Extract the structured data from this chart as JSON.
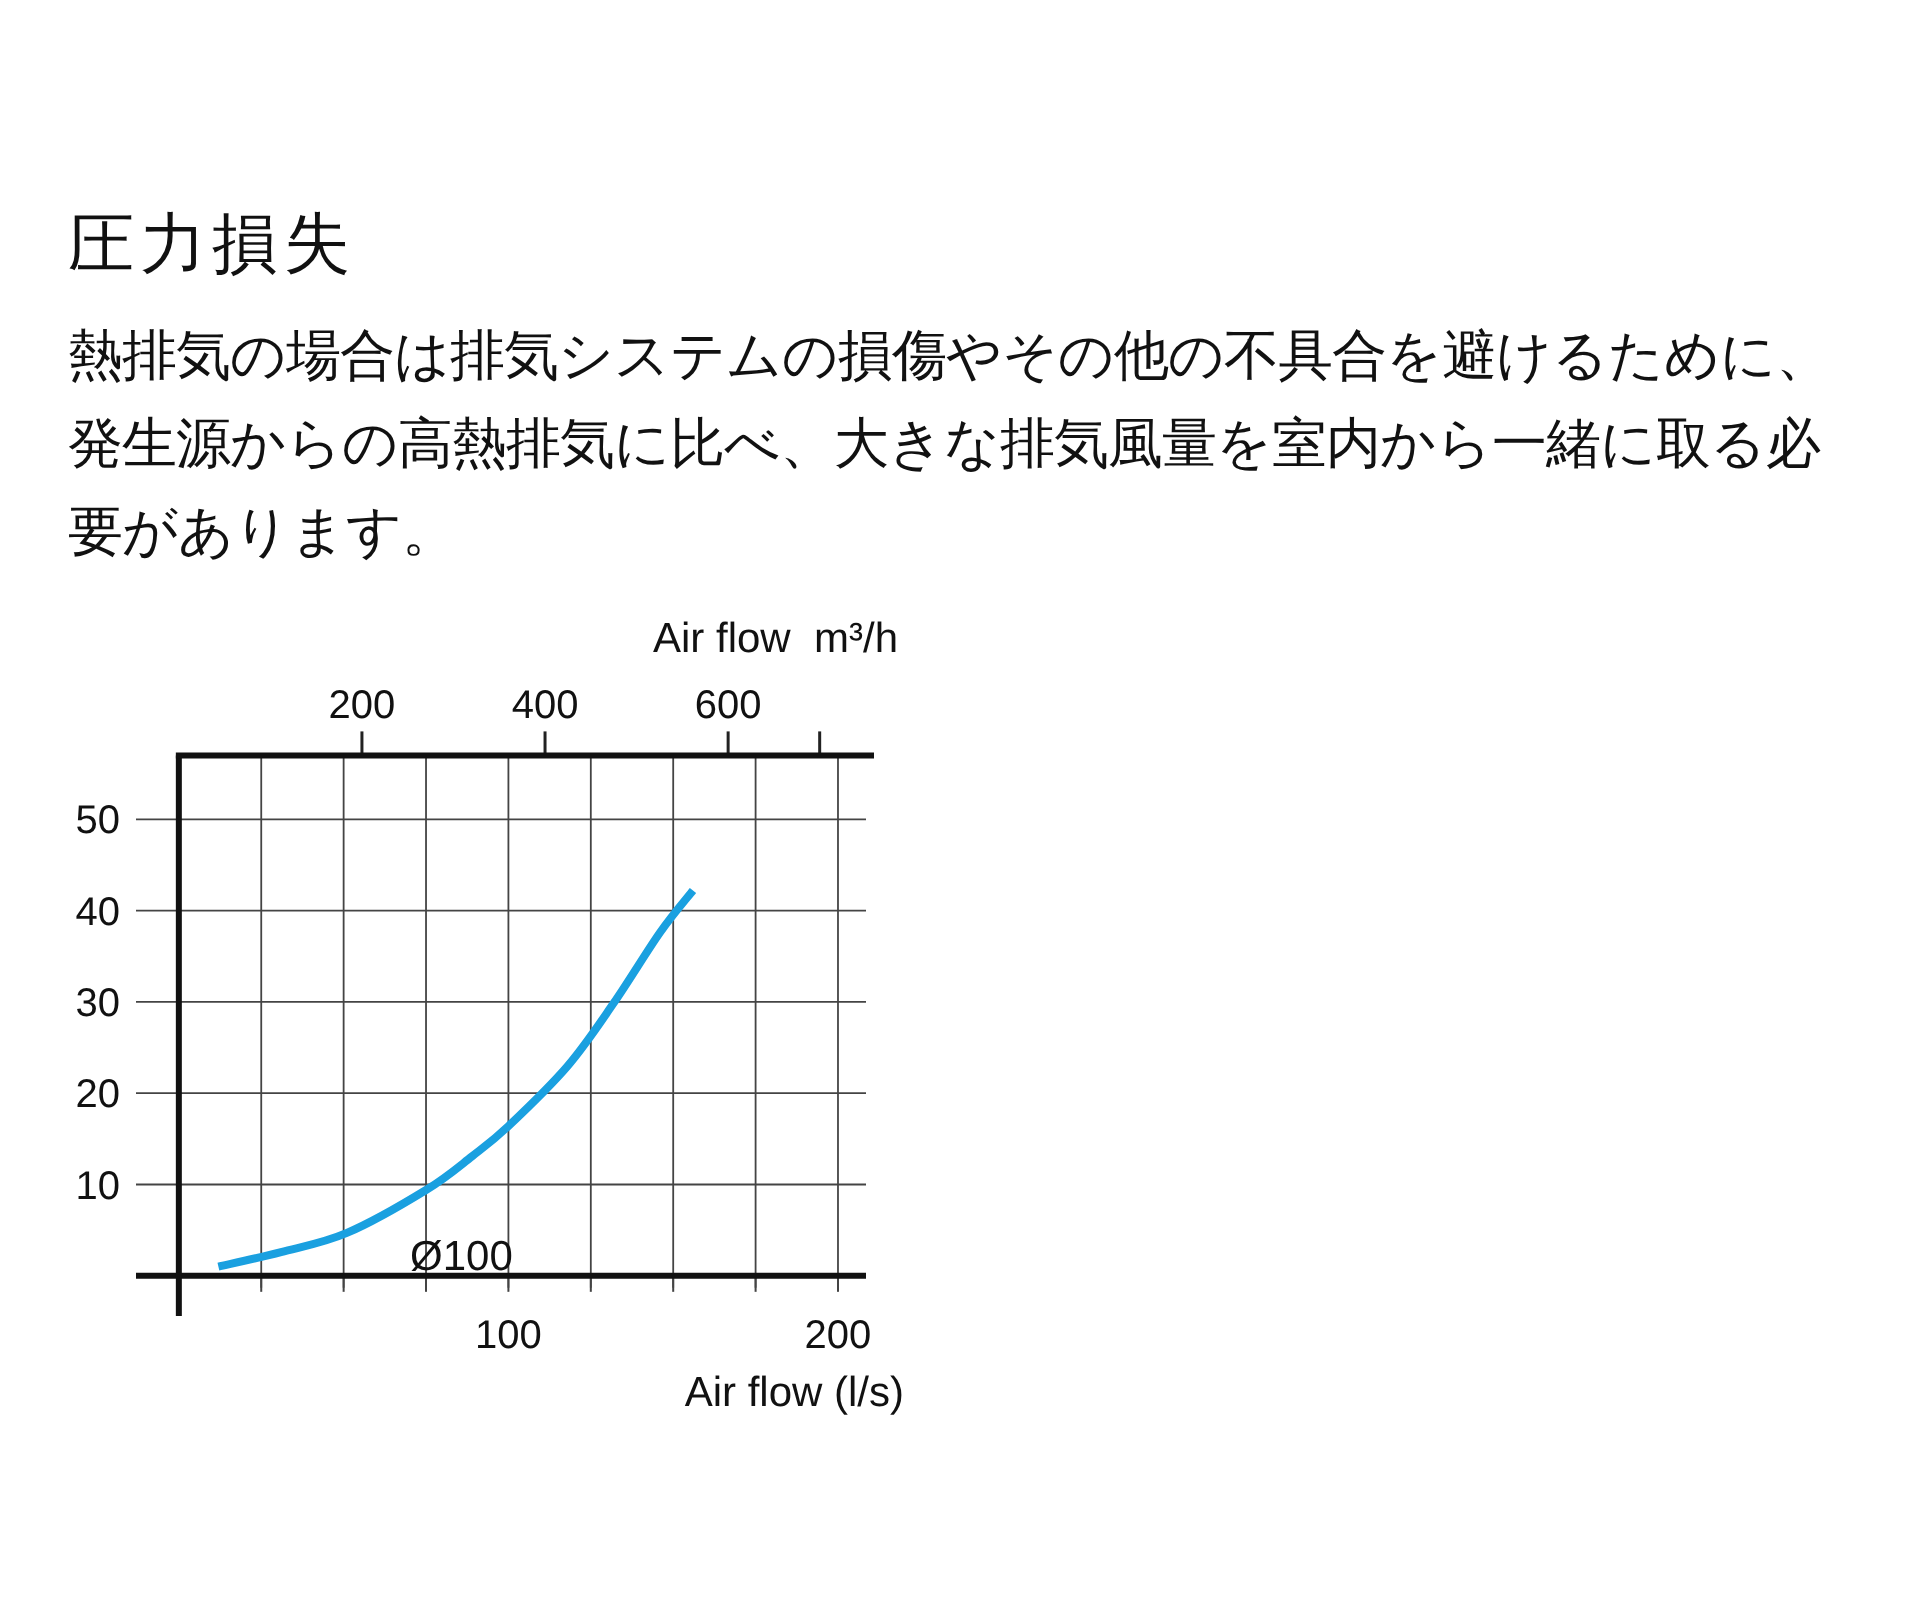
{
  "chart_data": {
    "type": "line",
    "title": "圧力損失",
    "subtitle": "熱排気の場合は排気システムの損傷やその他の不具合を避けるために、発生源からの高熱排気に比べ、大きな排気風量を室内から一緒に取る必要があります。",
    "xlabel": "Air flow (l/s)",
    "x2label": "Air flow  m³/h",
    "xlim": [
      -13,
      208.5
    ],
    "ylim": [
      -4.4,
      57
    ],
    "x2lim": [
      -46.8,
      750.6
    ],
    "xticks": [
      {
        "value": 25,
        "label": null
      },
      {
        "value": 50,
        "label": null
      },
      {
        "value": 75,
        "label": null
      },
      100,
      {
        "value": 125,
        "label": null
      },
      {
        "value": 150,
        "label": null
      },
      {
        "value": 175,
        "label": null
      },
      200
    ],
    "yticks": [
      10,
      20,
      30,
      40,
      50
    ],
    "x2ticks": [
      200,
      400,
      600,
      {
        "value": 700,
        "label": null
      }
    ],
    "grid": true,
    "marker": "none",
    "line_style": "solid",
    "series": [
      {
        "name": "Ø100",
        "color": "#1aa0e0",
        "x": [
          12,
          31,
          51,
          75,
          89,
          100,
          118,
          132,
          146,
          156
        ],
        "values": [
          1.0,
          2.6,
          4.7,
          9.4,
          13.1,
          16.4,
          23.0,
          29.9,
          37.6,
          42.2
        ]
      }
    ]
  }
}
